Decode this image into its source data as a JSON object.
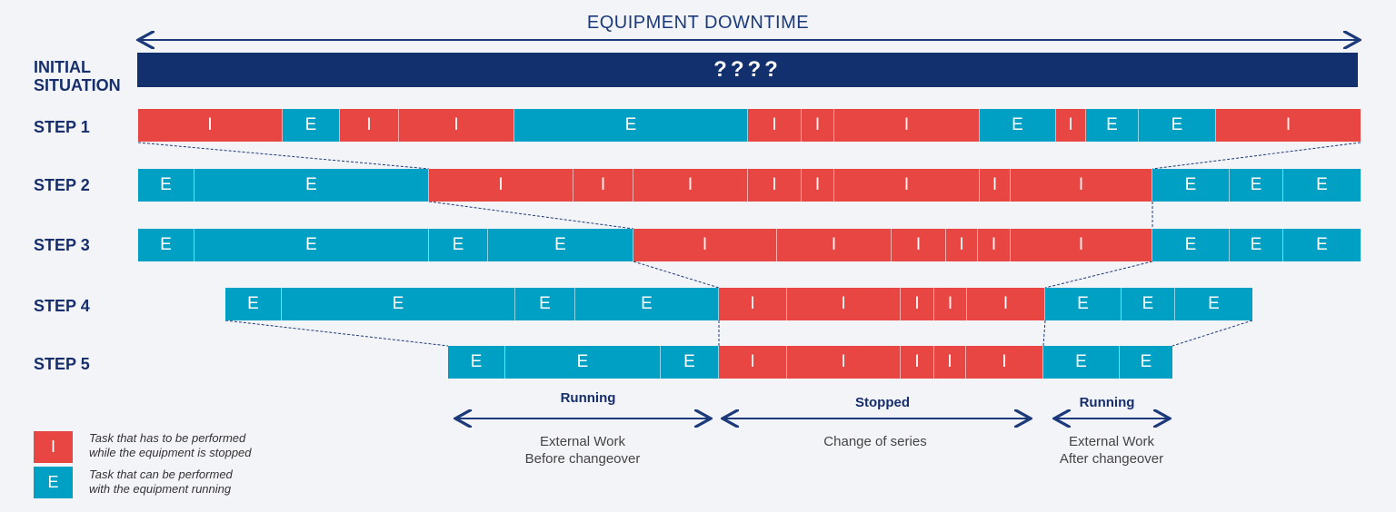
{
  "title": "EQUIPMENT DOWNTIME",
  "initial": {
    "label_line1": "INITIAL",
    "label_line2": "SITUATION",
    "bar_text": "????"
  },
  "steps": [
    {
      "label": "STEP 1",
      "segments": [
        {
          "t": "I",
          "text": "I"
        },
        {
          "t": "E",
          "text": "E"
        },
        {
          "t": "I",
          "text": "I"
        },
        {
          "t": "I",
          "text": "I"
        },
        {
          "t": "E",
          "text": "E"
        },
        {
          "t": "I",
          "text": "I"
        },
        {
          "t": "I",
          "text": "I"
        },
        {
          "t": "I",
          "text": "I"
        },
        {
          "t": "E",
          "text": "E"
        },
        {
          "t": "I",
          "text": "I"
        },
        {
          "t": "E",
          "text": "E"
        },
        {
          "t": "E",
          "text": "E"
        },
        {
          "t": "I",
          "text": "I"
        }
      ]
    },
    {
      "label": "STEP 2",
      "segments": [
        {
          "t": "E",
          "text": "E"
        },
        {
          "t": "E",
          "text": "E"
        },
        {
          "t": "I",
          "text": "I"
        },
        {
          "t": "I",
          "text": "I"
        },
        {
          "t": "I",
          "text": "I"
        },
        {
          "t": "I",
          "text": "I"
        },
        {
          "t": "I",
          "text": "I"
        },
        {
          "t": "I",
          "text": "I"
        },
        {
          "t": "I",
          "text": "I"
        },
        {
          "t": "I",
          "text": "I"
        },
        {
          "t": "E",
          "text": "E"
        },
        {
          "t": "E",
          "text": "E"
        },
        {
          "t": "E",
          "text": "E"
        }
      ]
    },
    {
      "label": "STEP 3",
      "segments": [
        {
          "t": "E",
          "text": "E"
        },
        {
          "t": "E",
          "text": "E"
        },
        {
          "t": "E",
          "text": "E"
        },
        {
          "t": "E",
          "text": "E"
        },
        {
          "t": "I",
          "text": "I"
        },
        {
          "t": "I",
          "text": "I"
        },
        {
          "t": "I",
          "text": "I"
        },
        {
          "t": "I",
          "text": "I"
        },
        {
          "t": "I",
          "text": "I"
        },
        {
          "t": "I",
          "text": "I"
        },
        {
          "t": "E",
          "text": "E"
        },
        {
          "t": "E",
          "text": "E"
        },
        {
          "t": "E",
          "text": "E"
        }
      ]
    },
    {
      "label": "STEP 4",
      "segments": [
        {
          "t": "E",
          "text": "E"
        },
        {
          "t": "E",
          "text": "E"
        },
        {
          "t": "E",
          "text": "E"
        },
        {
          "t": "E",
          "text": "E"
        },
        {
          "t": "I",
          "text": "I"
        },
        {
          "t": "I",
          "text": "I"
        },
        {
          "t": "I",
          "text": "I"
        },
        {
          "t": "I",
          "text": "I"
        },
        {
          "t": "I",
          "text": "I"
        },
        {
          "t": "E",
          "text": "E"
        },
        {
          "t": "E",
          "text": "E"
        },
        {
          "t": "E",
          "text": "E"
        }
      ]
    },
    {
      "label": "STEP 5",
      "segments": [
        {
          "t": "E",
          "text": "E"
        },
        {
          "t": "E",
          "text": "E"
        },
        {
          "t": "E",
          "text": "E"
        },
        {
          "t": "I",
          "text": "I"
        },
        {
          "t": "I",
          "text": "I"
        },
        {
          "t": "I",
          "text": "I"
        },
        {
          "t": "I",
          "text": "I"
        },
        {
          "t": "I",
          "text": "I"
        },
        {
          "t": "E",
          "text": "E"
        },
        {
          "t": "E",
          "text": "E"
        }
      ]
    }
  ],
  "phases": [
    {
      "head": "Running",
      "line1": "External Work",
      "line2": "Before changeover"
    },
    {
      "head": "Stopped",
      "line1": "Change of series",
      "line2": ""
    },
    {
      "head": "Running",
      "line1": "External Work",
      "line2": "After changeover"
    }
  ],
  "legend": [
    {
      "letter": "I",
      "line1": "Task that has to be performed",
      "line2": "while the equipment is stopped"
    },
    {
      "letter": "E",
      "line1": "Task that can be performed",
      "line2": "with the equipment running"
    }
  ],
  "colors": {
    "internal": "#e84642",
    "external": "#00a0c4",
    "navy": "#13306e"
  }
}
